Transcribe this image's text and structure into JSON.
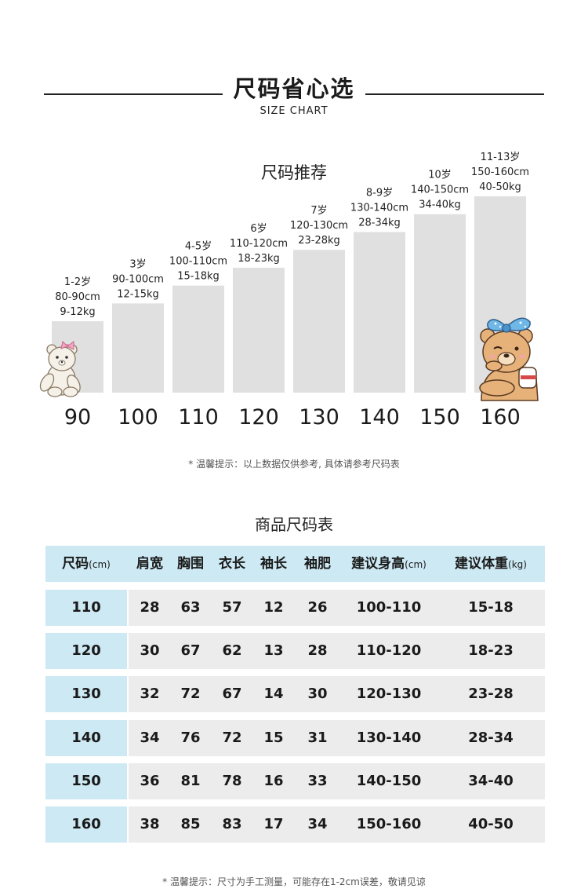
{
  "header": {
    "title": "尺码省心选",
    "subtitle": "SIZE CHART"
  },
  "chart_data": {
    "type": "bar",
    "title": "尺码推荐",
    "categories": [
      "90",
      "100",
      "110",
      "120",
      "130",
      "140",
      "150",
      "160"
    ],
    "annotations": [
      [
        "1-2岁",
        "80-90cm",
        "9-12kg"
      ],
      [
        "3岁",
        "90-100cm",
        "12-15kg"
      ],
      [
        "4-5岁",
        "100-110cm",
        "15-18kg"
      ],
      [
        "6岁",
        "110-120cm",
        "18-23kg"
      ],
      [
        "7岁",
        "120-130cm",
        "23-28kg"
      ],
      [
        "8-9岁",
        "130-140cm",
        "28-34kg"
      ],
      [
        "10岁",
        "140-150cm",
        "34-40kg"
      ],
      [
        "11-13岁",
        "150-160cm",
        "40-50kg"
      ]
    ],
    "values": [
      90,
      100,
      110,
      120,
      130,
      140,
      150,
      160
    ],
    "ylim": [
      50,
      160
    ],
    "bar_color": "#e0e0e0",
    "grid": false
  },
  "chart_note": "* 温馨提示：以上数据仅供参考, 具体请参考尺码表",
  "table": {
    "title": "商品尺码表",
    "headers": [
      {
        "label": "尺码",
        "unit": "(cm)"
      },
      {
        "label": "肩宽",
        "unit": ""
      },
      {
        "label": "胸围",
        "unit": ""
      },
      {
        "label": "衣长",
        "unit": ""
      },
      {
        "label": "袖长",
        "unit": ""
      },
      {
        "label": "袖肥",
        "unit": ""
      },
      {
        "label": "建议身高",
        "unit": "(cm)"
      },
      {
        "label": "建议体重",
        "unit": "(kg)"
      }
    ],
    "rows": [
      [
        "110",
        "28",
        "63",
        "57",
        "12",
        "26",
        "100-110",
        "15-18"
      ],
      [
        "120",
        "30",
        "67",
        "62",
        "13",
        "28",
        "110-120",
        "18-23"
      ],
      [
        "130",
        "32",
        "72",
        "67",
        "14",
        "30",
        "120-130",
        "23-28"
      ],
      [
        "140",
        "34",
        "76",
        "72",
        "15",
        "31",
        "130-140",
        "28-34"
      ],
      [
        "150",
        "36",
        "81",
        "78",
        "16",
        "33",
        "140-150",
        "34-40"
      ],
      [
        "160",
        "38",
        "85",
        "83",
        "17",
        "34",
        "150-160",
        "40-50"
      ]
    ],
    "header_color": "#cde9f4",
    "cell_color": "#ececec"
  },
  "table_note": "* 温馨提示：尺寸为手工测量，可能存在1-2cm误差，敬请见谅",
  "decorations": {
    "left": "teddy-bear-icon",
    "right": "bear-with-bow-icon"
  }
}
